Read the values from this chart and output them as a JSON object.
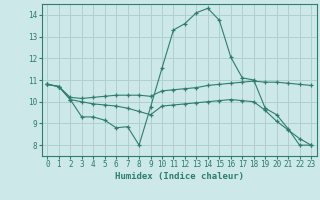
{
  "xlabel": "Humidex (Indice chaleur)",
  "bg_color": "#cce8e8",
  "grid_color": "#b0d0d0",
  "line_color": "#2e7d6e",
  "xlim": [
    -0.5,
    23.5
  ],
  "ylim": [
    7.5,
    14.5
  ],
  "xticks": [
    0,
    1,
    2,
    3,
    4,
    5,
    6,
    7,
    8,
    9,
    10,
    11,
    12,
    13,
    14,
    15,
    16,
    17,
    18,
    19,
    20,
    21,
    22,
    23
  ],
  "yticks": [
    8,
    9,
    10,
    11,
    12,
    13,
    14
  ],
  "line1_x": [
    0,
    1,
    2,
    3,
    4,
    5,
    6,
    7,
    8,
    9,
    10,
    11,
    12,
    13,
    14,
    15,
    16,
    17,
    18,
    19,
    20,
    21,
    22,
    23
  ],
  "line1_y": [
    10.8,
    10.7,
    10.1,
    9.3,
    9.3,
    9.15,
    8.8,
    8.85,
    8.0,
    9.75,
    11.55,
    13.3,
    13.6,
    14.1,
    14.3,
    13.75,
    12.05,
    11.1,
    11.0,
    9.7,
    9.4,
    8.75,
    8.0,
    8.0
  ],
  "line2_x": [
    0,
    1,
    2,
    3,
    4,
    5,
    6,
    7,
    8,
    9,
    10,
    11,
    12,
    13,
    14,
    15,
    16,
    17,
    18,
    19,
    20,
    21,
    22,
    23
  ],
  "line2_y": [
    10.8,
    10.7,
    10.2,
    10.15,
    10.2,
    10.25,
    10.3,
    10.3,
    10.3,
    10.25,
    10.5,
    10.55,
    10.6,
    10.65,
    10.75,
    10.8,
    10.85,
    10.9,
    10.95,
    10.9,
    10.9,
    10.85,
    10.8,
    10.75
  ],
  "line3_x": [
    0,
    1,
    2,
    3,
    4,
    5,
    6,
    7,
    8,
    9,
    10,
    11,
    12,
    13,
    14,
    15,
    16,
    17,
    18,
    19,
    20,
    21,
    22,
    23
  ],
  "line3_y": [
    10.8,
    10.7,
    10.1,
    10.0,
    9.9,
    9.85,
    9.8,
    9.7,
    9.55,
    9.4,
    9.8,
    9.85,
    9.9,
    9.95,
    10.0,
    10.05,
    10.1,
    10.05,
    10.0,
    9.6,
    9.1,
    8.7,
    8.3,
    8.0
  ]
}
